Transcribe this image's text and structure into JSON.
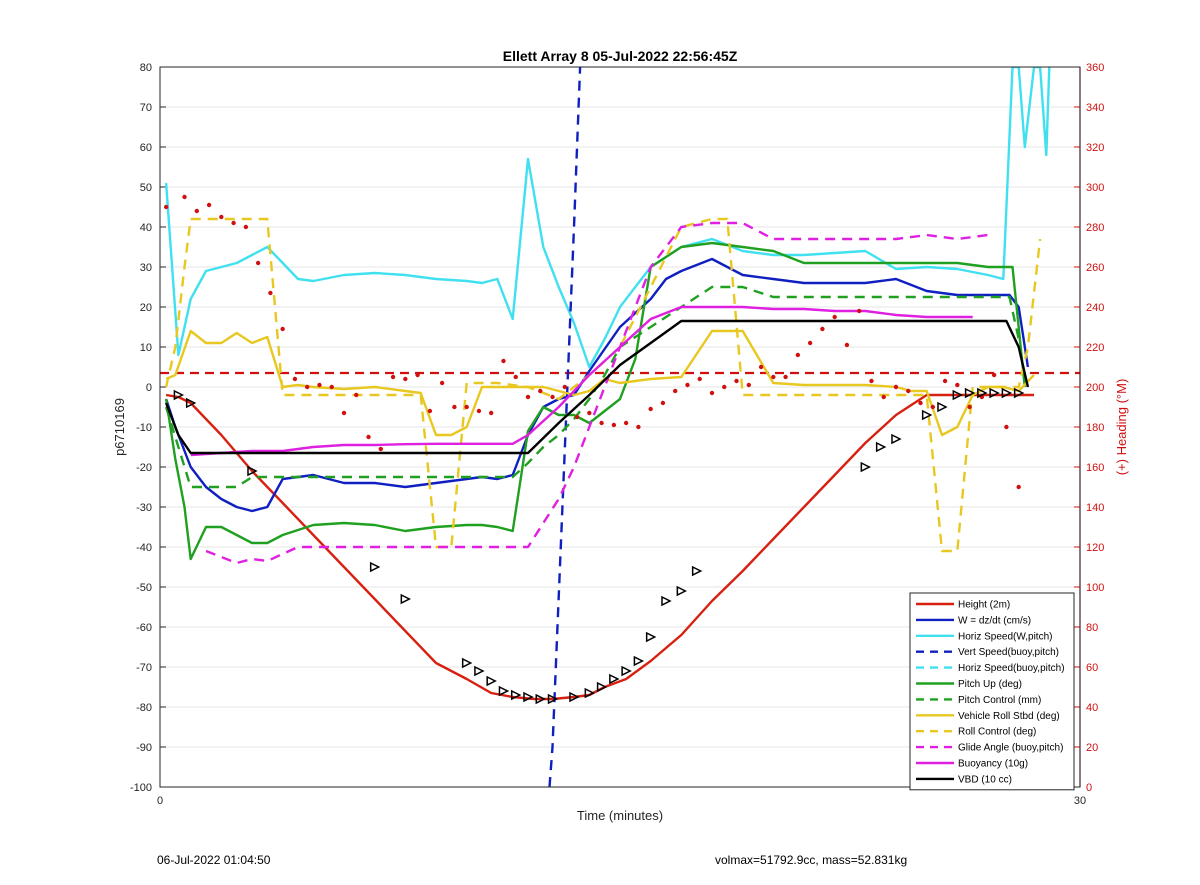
{
  "footer": {
    "timestamp": "06-Jul-2022 01:04:50",
    "info": "volmax=51792.9cc, mass=52.831kg"
  },
  "chart_data": {
    "type": "line",
    "title": "Ellett Array 8 05-Jul-2022 22:56:45Z",
    "xlabel": "Time (minutes)",
    "ylabel": "p6710169",
    "y2label": "(+) Heading (°M)",
    "xlim": [
      0,
      30
    ],
    "ylim": [
      -100,
      80
    ],
    "y2lim": [
      0,
      360
    ],
    "xticks": [
      0,
      30
    ],
    "yticks": [
      -100,
      -90,
      -80,
      -70,
      -60,
      -50,
      -40,
      -30,
      -20,
      -10,
      0,
      10,
      20,
      30,
      40,
      50,
      60,
      70,
      80
    ],
    "y2ticks": [
      0,
      20,
      40,
      60,
      80,
      100,
      120,
      140,
      160,
      180,
      200,
      220,
      240,
      260,
      280,
      300,
      320,
      340,
      360
    ],
    "grid": true,
    "legend_position": "bottom-right",
    "colors": {
      "height": "#d82010",
      "w": "#1020c0",
      "horiz": "#40e0f0",
      "pitch": "#20a020",
      "roll": "#e8c820",
      "glide": "#e020e0",
      "buoyancy": "#e020e0",
      "vbd": "#000000",
      "heading": "#d01010",
      "axis_right": "#d01010"
    },
    "series": [
      {
        "name": "Height (2m)",
        "color": "#d82010",
        "dash": false,
        "x": [
          0.2,
          0.6,
          1.0,
          2.0,
          3.0,
          4.0,
          5.0,
          6.0,
          7.0,
          8.0,
          9.0,
          10.0,
          10.8,
          11.5,
          12.2,
          12.8,
          13.5,
          14.0,
          14.5,
          15.2,
          16.0,
          17.0,
          18.0,
          19.0,
          20.0,
          21.0,
          22.0,
          23.0,
          24.0,
          25.0,
          26.0,
          27.0,
          27.9,
          28.5
        ],
        "y": [
          -2,
          -2.5,
          -4,
          -12,
          -21,
          -29,
          -37,
          -45,
          -53,
          -61,
          -69,
          -73,
          -76.5,
          -77.5,
          -78,
          -78,
          -77.5,
          -77,
          -75,
          -73,
          -68.5,
          -62,
          -53.5,
          -46,
          -38,
          -30,
          -22,
          -14,
          -7,
          -2,
          -2,
          -2,
          -2,
          -2
        ]
      },
      {
        "name": "W = dz/dt (cm/s)",
        "color": "#1020c0",
        "dash": false,
        "x": [
          0.2,
          0.5,
          1.0,
          1.5,
          2.0,
          2.5,
          3.0,
          3.5,
          4.0,
          5.0,
          6.0,
          7.0,
          8.0,
          9.0,
          10.0,
          10.5,
          11.0,
          11.5,
          12.0,
          12.5,
          13.0,
          13.5,
          14.0,
          15.0,
          16.0,
          16.5,
          17.0,
          18.0,
          19.0,
          20.0,
          21.0,
          22.0,
          23.0,
          24.0,
          25.0,
          26.0,
          27.0,
          27.7,
          28.0,
          28.3
        ],
        "y": [
          -3,
          -10,
          -20,
          -25,
          -28,
          -30,
          -31,
          -30,
          -23,
          -22,
          -24,
          -24,
          -25,
          -24,
          -23,
          -22.5,
          -23,
          -22,
          -12,
          -5,
          -3,
          -2,
          4,
          15,
          22,
          27,
          29,
          32,
          28,
          27,
          26,
          26,
          26,
          27,
          24,
          23,
          23,
          23,
          20,
          5
        ]
      },
      {
        "name": "Horiz Speed(W,pitch)",
        "color": "#40e0f0",
        "dash": false,
        "x": [
          0.2,
          0.6,
          1.0,
          1.5,
          2.0,
          2.5,
          3.0,
          3.5,
          4.0,
          4.5,
          5.0,
          6.0,
          7.0,
          8.0,
          9.0,
          10.0,
          10.5,
          11.0,
          11.5,
          12.0,
          12.5,
          13.0,
          13.5,
          14.0,
          14.5,
          15.0,
          15.5,
          16.0,
          17.0,
          18.0,
          19.0,
          20.0,
          21.0,
          22.0,
          23.0,
          24.0,
          25.0,
          26.0,
          27.0,
          27.5,
          27.8,
          28.0,
          28.2,
          28.5,
          28.7,
          28.9,
          29.0
        ],
        "y": [
          51,
          8,
          22,
          29,
          30,
          31,
          33,
          35,
          31,
          27,
          26.5,
          28,
          28.5,
          28,
          27,
          26.5,
          26,
          27,
          17,
          57,
          35,
          25,
          16,
          5,
          12,
          20,
          25,
          30,
          35,
          37,
          34,
          33,
          33,
          33.5,
          34,
          29.5,
          30,
          29.5,
          28,
          27,
          80,
          80,
          60,
          80,
          80,
          58,
          80
        ]
      },
      {
        "name": "Vert Speed(buoy,pitch)",
        "color": "#1020c0",
        "dash": true,
        "x": [
          12.7,
          12.8,
          13.5,
          13.7
        ],
        "y": [
          -100,
          -90,
          40,
          80
        ]
      },
      {
        "name": "Horiz Speed(buoy,pitch)",
        "color": "#40e0f0",
        "dash": true,
        "x": [],
        "y": []
      },
      {
        "name": "Pitch Up (deg)",
        "color": "#20a020",
        "dash": false,
        "x": [
          0.2,
          0.5,
          0.8,
          1.0,
          1.5,
          2.0,
          2.5,
          3.0,
          3.5,
          4.0,
          5.0,
          6.0,
          7.0,
          8.0,
          9.0,
          10.0,
          10.5,
          11.0,
          11.5,
          12.0,
          12.5,
          13.0,
          13.5,
          14.0,
          14.5,
          15.0,
          15.5,
          16.0,
          17.0,
          18.0,
          19.0,
          20.0,
          21.0,
          22.0,
          23.0,
          24.0,
          25.0,
          26.0,
          27.0,
          27.8,
          28.2
        ],
        "y": [
          -3,
          -18,
          -30,
          -43,
          -35,
          -35,
          -37,
          -39,
          -39,
          -37,
          -34.5,
          -34,
          -34.5,
          -36,
          -35,
          -34.5,
          -34.5,
          -35,
          -36,
          -11,
          -5,
          -7,
          -7,
          -9,
          -6,
          -3,
          7,
          30,
          35,
          36,
          35,
          34,
          31,
          31,
          31,
          31,
          31,
          31,
          30,
          30,
          0
        ]
      },
      {
        "name": "Pitch Control (mm)",
        "color": "#20a020",
        "dash": true,
        "x": [
          0.2,
          0.6,
          1.0,
          2.0,
          2.5,
          3.0,
          4.0,
          5.0,
          6.0,
          7.0,
          8.0,
          9.0,
          10.0,
          11.0,
          11.5,
          12.0,
          12.5,
          13.0,
          13.5,
          14.0,
          14.5,
          15.0,
          16.0,
          17.0,
          18.0,
          19.0,
          20.0,
          21.0,
          22.0,
          23.0,
          24.0,
          25.0,
          26.0,
          27.0,
          27.7,
          28.0
        ],
        "y": [
          -5,
          -15,
          -25,
          -25,
          -25,
          -22.5,
          -22.5,
          -22.5,
          -22.5,
          -22.5,
          -22.5,
          -22.5,
          -22.5,
          -22.5,
          -22.5,
          -19,
          -15,
          -12,
          -8,
          -3,
          3,
          10,
          15,
          20,
          25,
          25,
          22.5,
          22.5,
          22.5,
          22.5,
          22.5,
          22.5,
          22.5,
          22.5,
          22.5,
          12
        ]
      },
      {
        "name": "Vehicle Roll Stbd (deg)",
        "color": "#e8c820",
        "dash": false,
        "x": [
          0.2,
          0.5,
          1.0,
          1.5,
          2.0,
          2.5,
          3.0,
          3.5,
          4.0,
          4.5,
          5.0,
          6.0,
          7.0,
          8.0,
          8.5,
          9.0,
          9.5,
          10.0,
          10.5,
          11.0,
          12.0,
          12.5,
          13.0,
          13.5,
          14.0,
          14.5,
          15.0,
          15.5,
          16.0,
          17.0,
          18.0,
          19.0,
          20.0,
          21.0,
          22.0,
          23.0,
          24.0,
          24.5,
          25.0,
          25.5,
          26.0,
          26.5,
          27.0,
          27.5,
          28.0,
          28.5
        ],
        "y": [
          2,
          3,
          14,
          11,
          11,
          13.5,
          11,
          12.5,
          0,
          0.5,
          0,
          -0.5,
          0,
          -1,
          -1.5,
          -12,
          -12,
          -10,
          0,
          0,
          0,
          0,
          -1,
          -2,
          -1,
          2,
          1,
          1.5,
          2,
          2.5,
          14,
          14,
          1,
          0.5,
          0.5,
          0.5,
          0,
          -1,
          -1,
          -12,
          -10,
          -2,
          0,
          0,
          -1,
          3
        ]
      },
      {
        "name": "Roll Control (deg)",
        "color": "#e8c820",
        "dash": true,
        "x": [
          0.2,
          0.5,
          0.8,
          1.0,
          2.0,
          3.0,
          3.5,
          4.0,
          5.0,
          6.0,
          7.0,
          8.0,
          8.5,
          9.0,
          9.5,
          10.0,
          11.0,
          12.0,
          13.0,
          14.0,
          15.0,
          16.0,
          17.0,
          18.0,
          18.5,
          19.0,
          20.0,
          21.0,
          22.0,
          23.0,
          24.0,
          24.5,
          25.0,
          25.5,
          26.0,
          26.5,
          27.0,
          27.5,
          28.0,
          28.3,
          28.7
        ],
        "y": [
          0,
          10,
          30,
          42,
          42,
          42,
          42,
          -2,
          -2,
          -2,
          -2,
          -2,
          -2,
          -40,
          -40,
          1,
          1,
          0,
          -3,
          3,
          10,
          25,
          40,
          42,
          42,
          -2,
          -2,
          -2,
          -2,
          -2,
          -2,
          -2,
          -2,
          -41,
          -41,
          0,
          0,
          0,
          0,
          10,
          37
        ]
      },
      {
        "name": "Glide Angle (buoy,pitch)",
        "color": "#e020e0",
        "dash": true,
        "x": [
          1.5,
          2.5,
          3.0,
          3.5,
          4.5,
          6.0,
          8.0,
          9.0,
          10.0,
          10.5,
          11.0,
          11.5,
          12.0,
          13.0,
          13.5,
          14.0,
          15.0,
          16.0,
          17.0,
          18.0,
          19.0,
          20.0,
          21.0,
          22.0,
          23.0,
          24.0,
          25.0,
          26.0,
          27.0
        ],
        "y": [
          -41,
          -44,
          -43,
          -43.5,
          -40,
          -40,
          -40,
          -40,
          -40,
          -40,
          -40,
          -40,
          -40,
          -28,
          -20,
          -10,
          10,
          30,
          40,
          41,
          41,
          37,
          37,
          37,
          37,
          37,
          38,
          37,
          38
        ]
      },
      {
        "name": "Buoyancy (10g)",
        "color": "#e020e0",
        "dash": false,
        "x": [
          1.0,
          2.0,
          3.0,
          4.0,
          5.0,
          6.0,
          7.0,
          8.0,
          9.0,
          10.0,
          10.5,
          11.0,
          11.5,
          12.0,
          13.0,
          14.0,
          15.0,
          16.0,
          17.0,
          18.0,
          19.0,
          20.0,
          21.0,
          22.0,
          23.0,
          24.0,
          25.0,
          26.0,
          26.5
        ],
        "y": [
          -17,
          -16.5,
          -16,
          -16,
          -15,
          -14.5,
          -14.5,
          -14.3,
          -14.2,
          -14.2,
          -14.2,
          -14.2,
          -14.2,
          -12,
          -5,
          3,
          10,
          17,
          20,
          20,
          20,
          19.5,
          19.5,
          19,
          19,
          18,
          17.5,
          17.5,
          17.5
        ]
      },
      {
        "name": "VBD (10 cc)",
        "color": "#000000",
        "dash": false,
        "x": [
          0.2,
          0.6,
          1.0,
          1.5,
          11.0,
          11.5,
          12.0,
          13.0,
          14.0,
          15.0,
          16.0,
          17.0,
          18.0,
          19.0,
          20.0,
          21.0,
          22.0,
          23.0,
          24.0,
          25.0,
          26.0,
          27.0,
          27.6,
          28.0,
          28.3
        ],
        "y": [
          -4,
          -12,
          -16.5,
          -16.5,
          -16.5,
          -16.5,
          -16.5,
          -9,
          -2,
          5.5,
          11,
          16.5,
          16.5,
          16.5,
          16.5,
          16.5,
          16.5,
          16.5,
          16.5,
          16.5,
          16.5,
          16.5,
          16.5,
          10,
          0
        ]
      }
    ],
    "heading_reference_line": {
      "axis": "right",
      "y": 207,
      "color": "#d01010",
      "dash": true
    },
    "heading_points": {
      "axis": "right",
      "color": "#d01010",
      "x": [
        0.2,
        0.8,
        1.2,
        1.6,
        2.0,
        2.4,
        2.8,
        3.2,
        3.6,
        4.0,
        4.4,
        4.8,
        5.2,
        5.6,
        6.0,
        6.4,
        6.8,
        7.2,
        7.6,
        8.0,
        8.4,
        8.8,
        9.2,
        9.6,
        10.0,
        10.4,
        10.8,
        11.2,
        11.6,
        12.0,
        12.4,
        12.8,
        13.2,
        13.6,
        14.0,
        14.4,
        14.8,
        15.2,
        15.6,
        16.0,
        16.4,
        16.8,
        17.2,
        17.6,
        18.0,
        18.4,
        18.8,
        19.2,
        19.6,
        20.0,
        20.4,
        20.8,
        21.2,
        21.6,
        22.0,
        22.4,
        22.8,
        23.2,
        23.6,
        24.0,
        24.4,
        24.8,
        25.2,
        25.6,
        26.0,
        26.4,
        26.8,
        27.2,
        27.6,
        28.0
      ],
      "y": [
        290,
        295,
        288,
        291,
        285,
        282,
        280,
        262,
        247,
        229,
        204,
        200,
        201,
        200,
        187,
        196,
        175,
        169,
        205,
        204,
        206,
        188,
        202,
        190,
        190,
        188,
        187,
        213,
        205,
        195,
        198,
        195,
        200,
        185,
        187,
        182,
        181,
        182,
        180,
        189,
        192,
        198,
        201,
        204,
        197,
        200,
        203,
        201,
        210,
        205,
        205,
        216,
        222,
        229,
        235,
        221,
        238,
        203,
        195,
        200,
        198,
        192,
        190,
        203,
        201,
        190,
        195,
        206,
        180,
        150
      ]
    },
    "height_markers": {
      "x": [
        0.6,
        1.0,
        3.0,
        7.0,
        8.0,
        10.0,
        10.4,
        10.8,
        11.2,
        11.6,
        12.0,
        12.4,
        12.8,
        13.5,
        14.0,
        14.4,
        14.8,
        15.2,
        15.6,
        16.0,
        16.5,
        17.0,
        17.5,
        23.0,
        23.5,
        24.0,
        25.0,
        25.5,
        26.0,
        26.4,
        26.8,
        27.2,
        27.6,
        28.0
      ],
      "y": [
        -2,
        -4,
        -21,
        -45,
        -53,
        -69,
        -71,
        -73.5,
        -76,
        -77,
        -77.5,
        -78,
        -78,
        -77.5,
        -76.5,
        -75,
        -73,
        -71,
        -68.5,
        -62.5,
        -53.5,
        -51,
        -46,
        -20,
        -15,
        -13,
        -7,
        -5,
        -2,
        -1.5,
        -1.5,
        -1.5,
        -1.5,
        -1.5
      ]
    }
  }
}
